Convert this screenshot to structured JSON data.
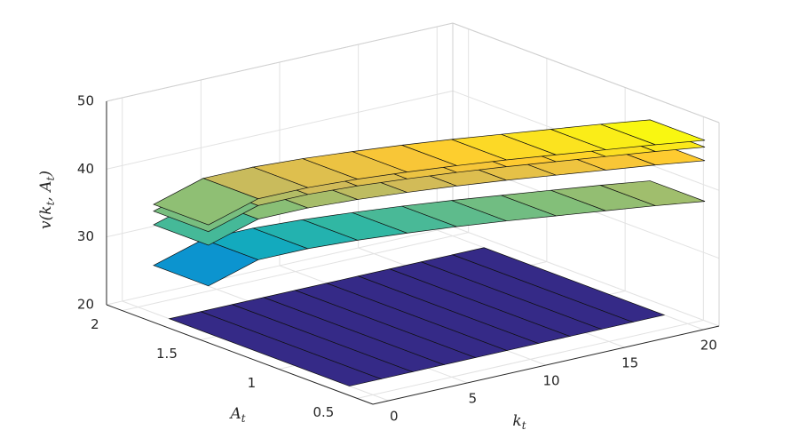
{
  "chart_data": {
    "type": "surface",
    "xlabel": [
      "k",
      "t"
    ],
    "ylabel": [
      "A",
      "t"
    ],
    "zlabel": [
      "v(k",
      "t",
      ", A",
      "t",
      ")"
    ],
    "xlim": [
      -1,
      21
    ],
    "xticks": [
      0,
      5,
      10,
      15,
      20
    ],
    "ylim": [
      0.4,
      2.1
    ],
    "yticks": [
      0.5,
      1,
      1.5,
      2
    ],
    "zlim": [
      20,
      50
    ],
    "zticks": [
      20,
      30,
      40,
      50
    ],
    "grid": true,
    "colormap": [
      "#352a87",
      "#0f5cdd",
      "#1481d6",
      "#06a4ca",
      "#2eb7a4",
      "#87bf77",
      "#d1bb59",
      "#fec832",
      "#f9fb0e"
    ],
    "x": [
      0,
      2,
      4,
      6,
      8,
      10,
      12,
      14,
      16,
      18,
      20
    ],
    "surfaces": [
      {
        "y": [
          [
            1.8,
            1.8,
            1.8,
            1.8,
            1.8,
            1.8,
            1.8,
            1.8,
            1.8,
            1.8,
            1.8
          ],
          [
            0.65,
            0.65,
            0.65,
            0.65,
            0.65,
            0.65,
            0.65,
            0.65,
            0.65,
            0.65,
            0.65
          ]
        ],
        "z": [
          20,
          20,
          20,
          20,
          20,
          20,
          20,
          20,
          20,
          20,
          20
        ]
      },
      {
        "y": [
          [
            1.9,
            1.784,
            1.668,
            1.552,
            1.436,
            1.32,
            1.204,
            1.088,
            0.972,
            0.856,
            0.74
          ],
          [
            1.55,
            1.434,
            1.318,
            1.202,
            1.086,
            0.97,
            0.854,
            0.738,
            0.622,
            0.506,
            0.39
          ]
        ],
        "z": [
          27,
          30.8,
          32.4,
          33.6,
          34.6,
          35.5,
          36.3,
          37,
          37.7,
          38.4,
          39
        ]
      },
      {
        "y": [
          [
            1.9,
            1.784,
            1.668,
            1.552,
            1.436,
            1.32,
            1.204,
            1.088,
            0.972,
            0.856,
            0.74
          ],
          [
            1.55,
            1.434,
            1.318,
            1.202,
            1.086,
            0.97,
            0.854,
            0.738,
            0.622,
            0.506,
            0.39
          ]
        ],
        "z": [
          33,
          36.8,
          38.4,
          39.6,
          40.6,
          41.5,
          42.3,
          43,
          43.7,
          44.4,
          45
        ]
      },
      {
        "y": [
          [
            1.9,
            1.784,
            1.668,
            1.552,
            1.436,
            1.32,
            1.204,
            1.088,
            0.972,
            0.856,
            0.74
          ],
          [
            1.55,
            1.434,
            1.318,
            1.202,
            1.086,
            0.97,
            0.854,
            0.738,
            0.622,
            0.506,
            0.39
          ]
        ],
        "z": [
          35,
          38.8,
          40.4,
          41.6,
          42.6,
          43.5,
          44.3,
          45,
          45.7,
          46.4,
          47
        ]
      },
      {
        "y": [
          [
            1.9,
            1.784,
            1.668,
            1.552,
            1.436,
            1.32,
            1.204,
            1.088,
            0.972,
            0.856,
            0.74
          ],
          [
            1.55,
            1.434,
            1.318,
            1.202,
            1.086,
            0.97,
            0.854,
            0.738,
            0.622,
            0.506,
            0.39
          ]
        ],
        "z": [
          36,
          39.8,
          41.4,
          42.6,
          43.6,
          44.5,
          45.3,
          46,
          46.7,
          47.4,
          48
        ]
      }
    ]
  }
}
